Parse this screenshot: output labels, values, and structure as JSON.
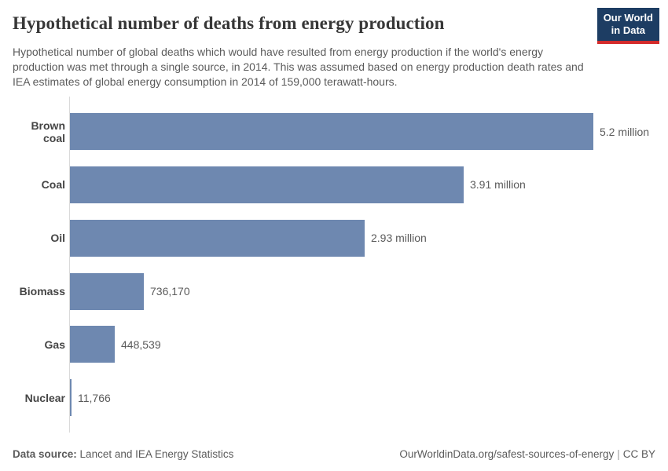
{
  "header": {
    "title": "Hypothetical number of deaths from energy production",
    "logo": {
      "line1": "Our World",
      "line2": "in Data"
    }
  },
  "subtitle": "Hypothetical number of global deaths which would have resulted from energy production if the world's energy production was met through a single source, in 2014. This was assumed based on energy production death rates and IEA estimates of global energy consumption in 2014 of 159,000 terawatt-hours.",
  "chart_data": {
    "type": "bar",
    "orientation": "horizontal",
    "title": "Hypothetical number of deaths from energy production",
    "categories": [
      "Brown coal",
      "Coal",
      "Oil",
      "Biomass",
      "Gas",
      "Nuclear"
    ],
    "values": [
      5200000,
      3910000,
      2930000,
      736170,
      448539,
      11766
    ],
    "value_labels": [
      "5.2 million",
      "3.91 million",
      "2.93 million",
      "736,170",
      "448,539",
      "11,766"
    ],
    "xlabel": "",
    "ylabel": "",
    "xlim": [
      0,
      5200000
    ],
    "grid": false,
    "legend": false,
    "bar_color": "#6e88b0"
  },
  "footer": {
    "datasource_label": "Data source:",
    "datasource_value": "Lancet and IEA Energy Statistics",
    "url": "OurWorldinData.org/safest-sources-of-energy",
    "separator": "|",
    "license": "CC BY"
  },
  "colors": {
    "bar": "#6e88b0",
    "axis_line": "#dadada",
    "title_text": "#373737",
    "subtitle_text": "#5b5b5b",
    "category_label": "#454545",
    "value_label": "#5b5b5b",
    "footer_text": "#5b5b5b",
    "logo_background": "#1d3d63",
    "logo_stripe": "#d42b2b",
    "logo_text": "#ffffff"
  }
}
